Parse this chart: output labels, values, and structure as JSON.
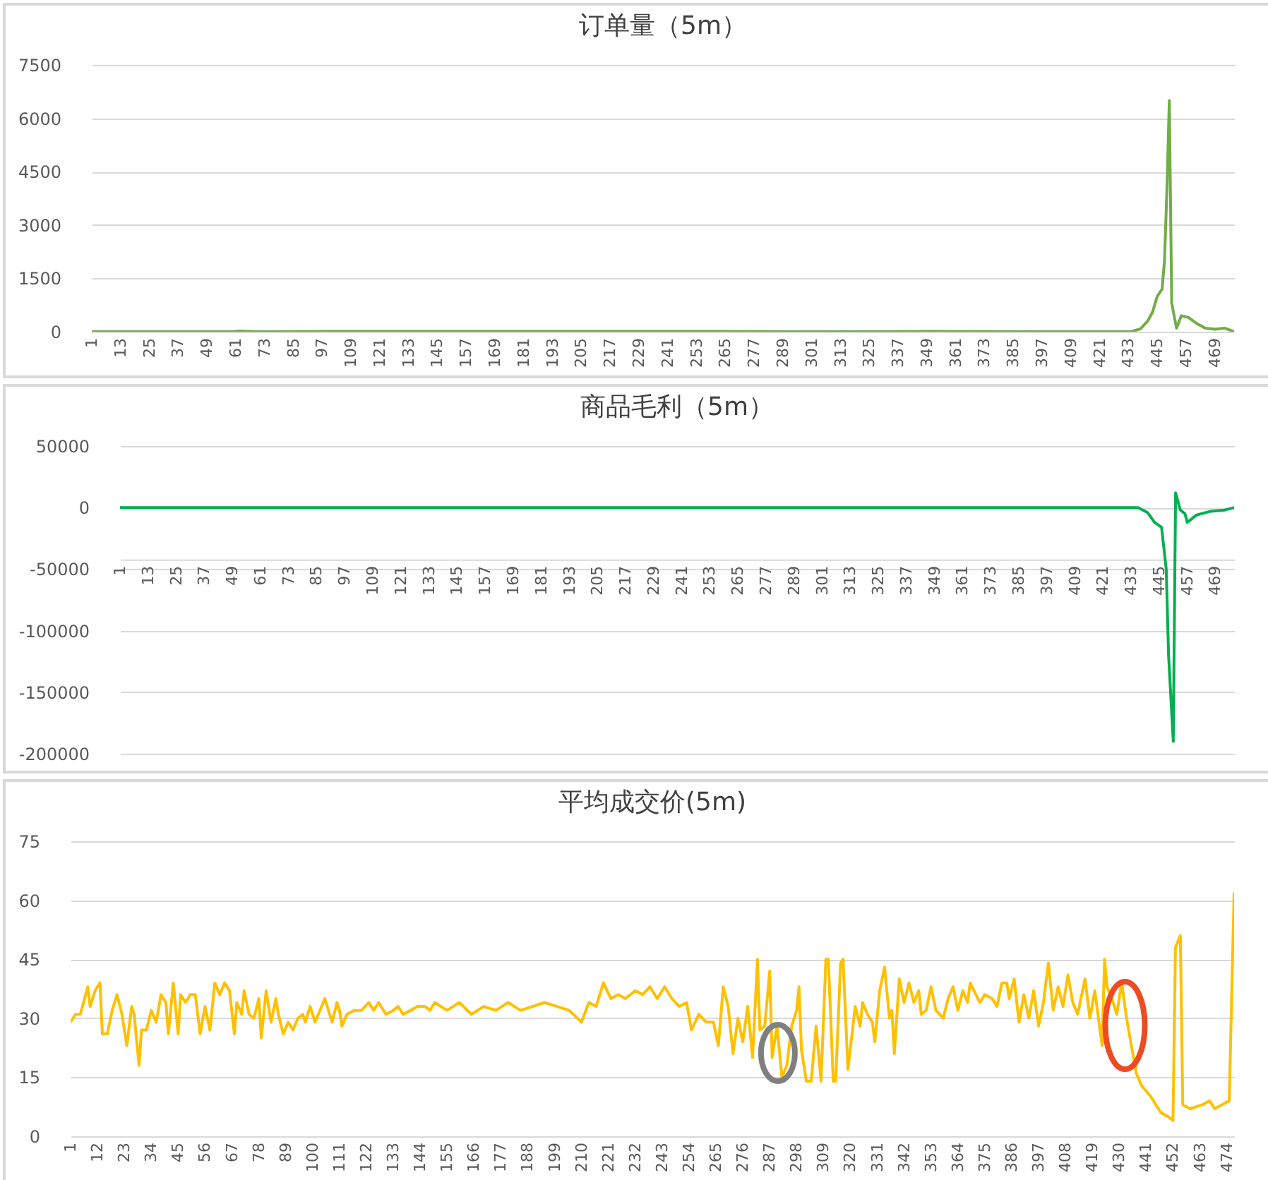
{
  "chart_data": [
    {
      "type": "line",
      "title": "订单量（5m）",
      "xlim": [
        1,
        477
      ],
      "xticks": [
        1,
        13,
        25,
        37,
        49,
        61,
        73,
        85,
        97,
        109,
        121,
        133,
        145,
        157,
        169,
        181,
        193,
        205,
        217,
        229,
        241,
        253,
        265,
        277,
        289,
        301,
        313,
        325,
        337,
        349,
        361,
        373,
        385,
        397,
        409,
        421,
        433,
        445,
        457,
        469
      ],
      "ylim": [
        0,
        7500
      ],
      "yticks": [
        0,
        1500,
        3000,
        4500,
        6000,
        7500
      ],
      "grid": "y",
      "series": [
        {
          "color": "#70ad47",
          "x": [
            1,
            20,
            40,
            60,
            62,
            70,
            100,
            150,
            200,
            250,
            300,
            350,
            400,
            430,
            434,
            438,
            441,
            443,
            445,
            447,
            448,
            449,
            450,
            451,
            453,
            455,
            458,
            461,
            465,
            469,
            473,
            477
          ],
          "values": [
            0,
            0,
            0,
            0,
            20,
            0,
            10,
            10,
            10,
            10,
            0,
            10,
            0,
            0,
            0,
            80,
            300,
            550,
            1000,
            1200,
            2000,
            4000,
            6500,
            800,
            100,
            450,
            400,
            250,
            100,
            70,
            100,
            0
          ]
        }
      ]
    },
    {
      "type": "line",
      "title": "商品毛利（5m）",
      "xlim": [
        1,
        477
      ],
      "xticks": [
        1,
        13,
        25,
        37,
        49,
        61,
        73,
        85,
        97,
        109,
        121,
        133,
        145,
        157,
        169,
        181,
        193,
        205,
        217,
        229,
        241,
        253,
        265,
        277,
        289,
        301,
        313,
        325,
        337,
        349,
        361,
        373,
        385,
        397,
        409,
        421,
        433,
        445,
        457,
        469
      ],
      "ylim": [
        -200000,
        50000
      ],
      "yticks": [
        -200000,
        -150000,
        -100000,
        -50000,
        0,
        50000
      ],
      "grid": "y",
      "series": [
        {
          "color": "#00b050",
          "x": [
            1,
            100,
            200,
            300,
            400,
            436,
            440,
            443,
            446,
            448,
            449,
            451,
            452,
            454,
            456,
            457,
            461,
            467,
            473,
            477
          ],
          "values": [
            0,
            0,
            0,
            0,
            0,
            0,
            -4000,
            -12000,
            -16000,
            -50000,
            -120000,
            -190000,
            12000,
            -2000,
            -5000,
            -12000,
            -6000,
            -3000,
            -2000,
            0
          ]
        }
      ]
    },
    {
      "type": "line",
      "title": "平均成交价(5m)",
      "xlim": [
        1,
        477
      ],
      "xticks": [
        1,
        12,
        23,
        34,
        45,
        56,
        67,
        78,
        89,
        100,
        111,
        122,
        133,
        144,
        155,
        166,
        177,
        188,
        199,
        210,
        221,
        232,
        243,
        254,
        265,
        276,
        287,
        298,
        309,
        320,
        331,
        342,
        353,
        364,
        375,
        386,
        397,
        408,
        419,
        430,
        441,
        452,
        463,
        474
      ],
      "ylim": [
        0,
        75
      ],
      "yticks": [
        0,
        15,
        30,
        45,
        60,
        75
      ],
      "grid": "y",
      "series": [
        {
          "color": "#ffc000",
          "x": [
            1,
            3,
            5,
            8,
            9,
            11,
            13,
            14,
            16,
            18,
            20,
            22,
            24,
            26,
            27,
            29,
            30,
            32,
            34,
            36,
            38,
            40,
            41,
            43,
            45,
            46,
            48,
            50,
            52,
            54,
            56,
            58,
            60,
            62,
            64,
            66,
            68,
            69,
            71,
            72,
            74,
            76,
            78,
            79,
            81,
            83,
            85,
            86,
            88,
            90,
            92,
            94,
            96,
            97,
            99,
            101,
            103,
            105,
            107,
            108,
            110,
            111,
            112,
            114,
            117,
            120,
            123,
            125,
            127,
            130,
            133,
            135,
            137,
            140,
            143,
            146,
            148,
            150,
            155,
            160,
            165,
            170,
            175,
            180,
            185,
            190,
            195,
            200,
            205,
            210,
            213,
            216,
            219,
            222,
            225,
            228,
            232,
            235,
            238,
            241,
            244,
            247,
            250,
            253,
            255,
            258,
            261,
            264,
            266,
            268,
            270,
            272,
            274,
            276,
            278,
            280,
            282,
            283,
            285,
            287,
            288,
            290,
            292,
            294,
            296,
            298,
            299,
            300,
            302,
            304,
            306,
            308,
            310,
            311,
            313,
            314,
            316,
            317,
            319,
            322,
            324,
            325,
            327,
            329,
            330,
            332,
            334,
            336,
            337,
            338,
            340,
            342,
            344,
            346,
            348,
            349,
            351,
            353,
            355,
            358,
            360,
            362,
            364,
            366,
            368,
            369,
            373,
            375,
            378,
            380,
            382,
            384,
            385,
            387,
            389,
            391,
            393,
            395,
            397,
            399,
            401,
            403,
            405,
            407,
            409,
            411,
            413,
            415,
            416,
            418,
            420,
            423,
            424,
            425,
            427,
            429,
            431,
            433,
            435,
            437,
            439,
            443,
            447,
            450,
            452,
            453,
            455,
            456,
            459,
            464,
            467,
            469,
            472,
            475,
            477
          ],
          "values": [
            29,
            31,
            31,
            38,
            33,
            37,
            39,
            26,
            26,
            32,
            36,
            31,
            23,
            33,
            31,
            18,
            27,
            27,
            32,
            29,
            36,
            34,
            26,
            39,
            26,
            36,
            34,
            36,
            36,
            26,
            33,
            27,
            39,
            36,
            39,
            37,
            26,
            34,
            31,
            37,
            31,
            30,
            35,
            25,
            37,
            29,
            35,
            31,
            26,
            29,
            27,
            30,
            31,
            29,
            33,
            29,
            32,
            35,
            31,
            29,
            34,
            32,
            28,
            31,
            32,
            32,
            34,
            32,
            34,
            31,
            32,
            33,
            31,
            32,
            33,
            33,
            32,
            34,
            32,
            34,
            31,
            33,
            32,
            34,
            32,
            33,
            34,
            33,
            32,
            29,
            34,
            33,
            39,
            35,
            36,
            35,
            37,
            36,
            38,
            35,
            38,
            35,
            33,
            34,
            27,
            31,
            29,
            29,
            23,
            38,
            33,
            21,
            30,
            24,
            33,
            20,
            45,
            27,
            28,
            42,
            20,
            28,
            15,
            18,
            28,
            32,
            38,
            22,
            14,
            14,
            28,
            14,
            45,
            45,
            14,
            14,
            44,
            45,
            17,
            33,
            28,
            34,
            31,
            29,
            24,
            37,
            43,
            30,
            32,
            21,
            40,
            34,
            39,
            34,
            37,
            31,
            32,
            38,
            32,
            30,
            35,
            38,
            32,
            37,
            34,
            39,
            34,
            36,
            35,
            33,
            39,
            39,
            35,
            40,
            29,
            36,
            30,
            37,
            28,
            34,
            44,
            32,
            38,
            33,
            41,
            34,
            31,
            37,
            40,
            30,
            37,
            23,
            45,
            38,
            35,
            31,
            39,
            30,
            23,
            16,
            13,
            10,
            6,
            5,
            4,
            48,
            51,
            8,
            7,
            8,
            9,
            7,
            8,
            9,
            62
          ]
        }
      ]
    }
  ]
}
